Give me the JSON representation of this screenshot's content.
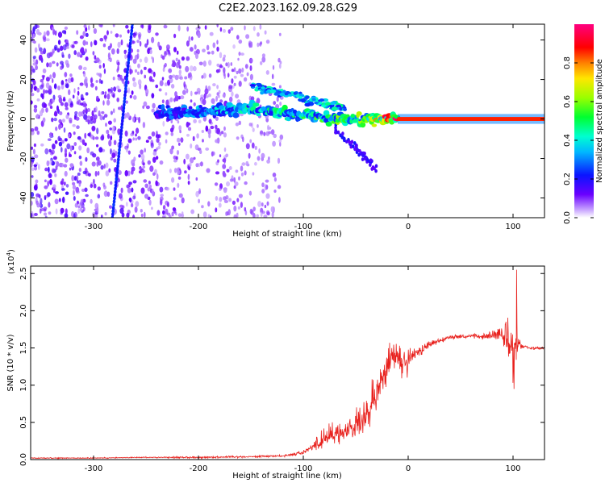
{
  "title": "C2E2.2023.162.09.28.G29",
  "colors": {
    "snr_line": "#e8201c",
    "spectrogram_low": "#6a00ff",
    "spectrogram_mid": "#00ffcc",
    "spectrogram_high": "#ff0000"
  },
  "chart_data": [
    {
      "type": "heatmap",
      "title": "C2E2.2023.162.09.28.G29",
      "xlabel": "Height of straight line (km)",
      "ylabel": "Frequency (Hz)",
      "xlim": [
        -360,
        130
      ],
      "ylim": [
        -50,
        48
      ],
      "x_ticks": [
        -300,
        -200,
        -100,
        0,
        100
      ],
      "y_ticks": [
        -40,
        -20,
        0,
        20,
        40
      ],
      "colorbar": {
        "label": "Normalized spectral amplitude",
        "range": [
          0.0,
          1.0
        ],
        "ticks": [
          "0.0",
          "0.2",
          "0.4",
          "0.6",
          "0.8"
        ],
        "colormap": "rainbow (purple → blue → cyan → green → yellow → red → magenta)"
      },
      "features": [
        {
          "name": "noise",
          "x_range": [
            -360,
            -120
          ],
          "freq_range": [
            -50,
            48
          ],
          "amplitude": 0.1
        },
        {
          "name": "slanted streak",
          "from": [
            -282,
            -50
          ],
          "to": [
            -263,
            48
          ],
          "amplitude": 0.2
        },
        {
          "name": "main line",
          "x_range": [
            -240,
            130
          ],
          "center_freq": [
            [
              -240,
              3
            ],
            [
              -150,
              5
            ],
            [
              -100,
              2
            ],
            [
              -60,
              0
            ],
            [
              -20,
              0
            ],
            [
              0,
              0
            ],
            [
              130,
              0
            ]
          ],
          "amplitude": [
            [
              -240,
              0.25
            ],
            [
              -100,
              0.45
            ],
            [
              -40,
              0.55
            ],
            [
              -10,
              0.9
            ],
            [
              130,
              0.9
            ]
          ]
        },
        {
          "name": "upper branch",
          "from": [
            -150,
            17
          ],
          "to": [
            -60,
            5
          ],
          "amplitude": 0.4
        },
        {
          "name": "lower branch",
          "from": [
            -70,
            -5
          ],
          "to": [
            -30,
            -25
          ],
          "amplitude": 0.2
        }
      ]
    },
    {
      "type": "line",
      "xlabel": "Height of straight line (km)",
      "ylabel": "SNR (10 * v/v)",
      "y_scale_label": "(x10",
      "y_scale_exponent": "4",
      "y_scale_suffix": ")",
      "xlim": [
        -360,
        130
      ],
      "ylim": [
        0,
        2.6
      ],
      "x_ticks": [
        -300,
        -200,
        -100,
        0,
        100
      ],
      "y_ticks": [
        "0.0",
        "0.5",
        "1.0",
        "1.5",
        "2.0",
        "2.5"
      ],
      "series": [
        {
          "x": [
            -360,
            -300,
            -250,
            -200,
            -150,
            -120,
            -110,
            -100,
            -90,
            -80,
            -70,
            -60,
            -50,
            -40,
            -30,
            -25,
            -20,
            -15,
            -10,
            -5,
            0,
            5,
            10,
            20,
            30,
            40,
            50,
            60,
            70,
            80,
            90,
            95,
            100,
            103,
            106,
            110,
            120,
            130
          ],
          "y": [
            0.02,
            0.02,
            0.03,
            0.03,
            0.04,
            0.05,
            0.07,
            0.1,
            0.18,
            0.3,
            0.35,
            0.38,
            0.45,
            0.55,
            0.9,
            1.1,
            1.25,
            1.35,
            1.4,
            1.3,
            1.3,
            1.4,
            1.45,
            1.55,
            1.6,
            1.65,
            1.65,
            1.66,
            1.65,
            1.67,
            1.7,
            1.6,
            1.3,
            1.6,
            1.55,
            1.52,
            1.5,
            1.5
          ],
          "noise": [
            0.01,
            0.01,
            0.01,
            0.02,
            0.02,
            0.02,
            0.03,
            0.05,
            0.1,
            0.2,
            0.2,
            0.2,
            0.3,
            0.35,
            0.4,
            0.45,
            0.45,
            0.4,
            0.35,
            0.3,
            0.25,
            0.15,
            0.1,
            0.08,
            0.05,
            0.04,
            0.04,
            0.04,
            0.05,
            0.1,
            0.2,
            0.35,
            0.6,
            0.5,
            0.1,
            0.05,
            0.03,
            0.02
          ]
        }
      ]
    }
  ]
}
